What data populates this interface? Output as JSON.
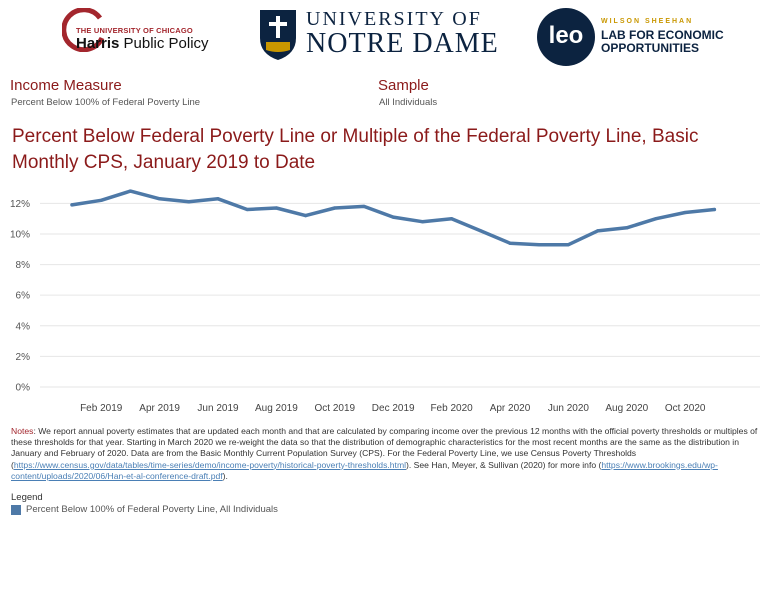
{
  "logos": {
    "harris": {
      "top": "THE UNIVERSITY OF CHICAGO",
      "main_bold": "Harris",
      "main_rest": " Public Policy"
    },
    "notre_dame": {
      "line1": "UNIVERSITY OF",
      "line2": "NOTRE DAME"
    },
    "leo": {
      "mark": "leo",
      "top": "WILSON SHEEHAN",
      "line1": "LAB FOR ECONOMIC",
      "line2": "OPPORTUNITIES"
    }
  },
  "filters": {
    "income_measure": {
      "label": "Income Measure",
      "value": "Percent Below 100% of Federal Poverty Line"
    },
    "sample": {
      "label": "Sample",
      "value": "All Individuals"
    }
  },
  "chart_title": "Percent Below Federal Poverty Line or Multiple of the Federal Poverty Line, Basic Monthly CPS, January 2019 to Date",
  "chart_data": {
    "type": "line",
    "title": "Percent Below Federal Poverty Line or Multiple of the Federal Poverty Line, Basic Monthly CPS, January 2019 to Date",
    "xlabel": "",
    "ylabel": "",
    "x": [
      "Jan 2019",
      "Feb 2019",
      "Mar 2019",
      "Apr 2019",
      "May 2019",
      "Jun 2019",
      "Jul 2019",
      "Aug 2019",
      "Sep 2019",
      "Oct 2019",
      "Nov 2019",
      "Dec 2019",
      "Jan 2020",
      "Feb 2020",
      "Mar 2020",
      "Apr 2020",
      "May 2020",
      "Jun 2020",
      "Jul 2020",
      "Aug 2020",
      "Sep 2020",
      "Oct 2020",
      "Nov 2020"
    ],
    "series": [
      {
        "name": "Percent Below 100% of Federal Poverty Line, All Individuals",
        "values": [
          11.9,
          12.2,
          12.8,
          12.3,
          12.1,
          12.3,
          11.6,
          11.7,
          11.2,
          11.7,
          11.8,
          11.1,
          10.8,
          11.0,
          10.2,
          9.4,
          9.3,
          9.3,
          10.2,
          10.4,
          11.0,
          11.4,
          11.6
        ],
        "color": "#4e79a7"
      }
    ],
    "x_tick_labels": [
      "Feb 2019",
      "Apr 2019",
      "Jun 2019",
      "Aug 2019",
      "Oct 2019",
      "Dec 2019",
      "Feb 2020",
      "Apr 2020",
      "Jun 2020",
      "Aug 2020",
      "Oct 2020"
    ],
    "y_ticks": [
      0,
      2,
      4,
      6,
      8,
      10,
      12
    ],
    "y_tick_labels": [
      "0%",
      "2%",
      "4%",
      "6%",
      "8%",
      "10%",
      "12%"
    ],
    "ylim": [
      0,
      13.2
    ],
    "grid": true,
    "legend_position": "bottom-left"
  },
  "notes": {
    "label": "Notes",
    "text1": ": We report annual poverty estimates that are updated each month and that are calculated by comparing income over the previous 12 months with the official poverty thresholds or multiples of these thresholds for that year.  Starting in March 2020 we re-weight the data so that the distribution of demographic characteristics for the most recent months are the same as the distribution in January and February of 2020. Data are from the Basic Monthly Current Population Survey (CPS). For the Federal Poverty Line, we use Census Poverty Thresholds (",
    "link1": "https://www.census.gov/data/tables/time-series/demo/income-poverty/historical-poverty-thresholds.html",
    "text2": "). See Han, Meyer, & Sullivan (2020) for more info (",
    "link2": "https://www.brookings.edu/wp-content/uploads/2020/06/Han-et-al-conference-draft.pdf",
    "text3": ")."
  },
  "legend": {
    "title": "Legend",
    "items": [
      {
        "label": "Percent Below 100% of Federal Poverty Line, All Individuals",
        "color": "#4e79a7"
      }
    ]
  }
}
